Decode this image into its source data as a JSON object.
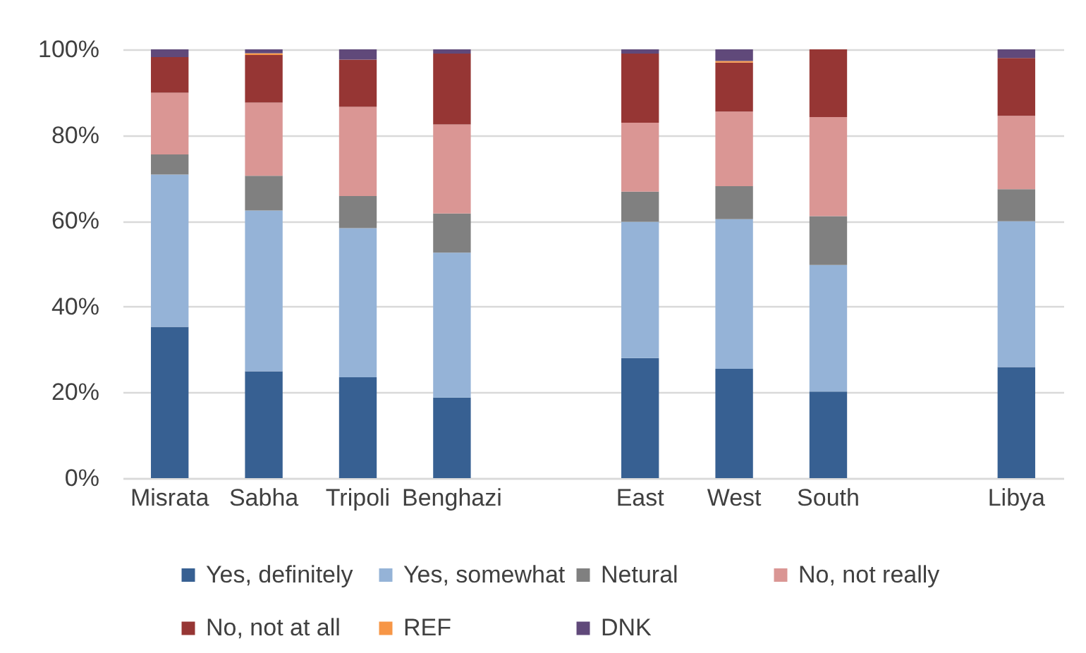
{
  "chart_data": {
    "type": "bar",
    "stacked": true,
    "categories": [
      "Misrata",
      "Sabha",
      "Tripoli",
      "Benghazi",
      null,
      "East",
      "West",
      "South",
      null,
      "Libya"
    ],
    "series": [
      {
        "name": "Yes, definitely",
        "color": "#376092",
        "values": [
          35.3,
          24.9,
          23.5,
          18.8,
          null,
          28.0,
          25.5,
          20.2,
          null,
          25.9
        ]
      },
      {
        "name": "Yes, somewhat",
        "color": "#95b3d7",
        "values": [
          35.5,
          37.5,
          34.8,
          33.8,
          null,
          31.8,
          34.9,
          29.5,
          null,
          34.0
        ]
      },
      {
        "name": "Netural",
        "color": "#808080",
        "values": [
          4.7,
          8.1,
          7.5,
          9.1,
          null,
          7.0,
          7.7,
          11.4,
          null,
          7.5
        ]
      },
      {
        "name": "No, not really",
        "color": "#da9694",
        "values": [
          14.4,
          17.1,
          20.8,
          20.8,
          null,
          16.1,
          17.4,
          23.1,
          null,
          17.1
        ]
      },
      {
        "name": "No, not at all",
        "color": "#963634",
        "values": [
          8.3,
          11.1,
          11.0,
          16.5,
          null,
          16.1,
          11.4,
          15.8,
          null,
          13.5
        ]
      },
      {
        "name": "REF",
        "color": "#f79646",
        "values": [
          null,
          0.4,
          null,
          null,
          null,
          null,
          0.4,
          null,
          null,
          null
        ]
      },
      {
        "name": "DNK",
        "color": "#60497a",
        "values": [
          1.8,
          0.9,
          2.4,
          1.0,
          null,
          1.0,
          2.7,
          null,
          null,
          2.0
        ]
      }
    ],
    "ylim": [
      0,
      100
    ],
    "yticks": [
      {
        "value": 0,
        "label": "0%"
      },
      {
        "value": 20,
        "label": "20%"
      },
      {
        "value": 40,
        "label": "40%"
      },
      {
        "value": 60,
        "label": "60%"
      },
      {
        "value": 80,
        "label": "80%"
      },
      {
        "value": 100,
        "label": "100%"
      }
    ],
    "grid": "y",
    "legend": "bottom"
  }
}
